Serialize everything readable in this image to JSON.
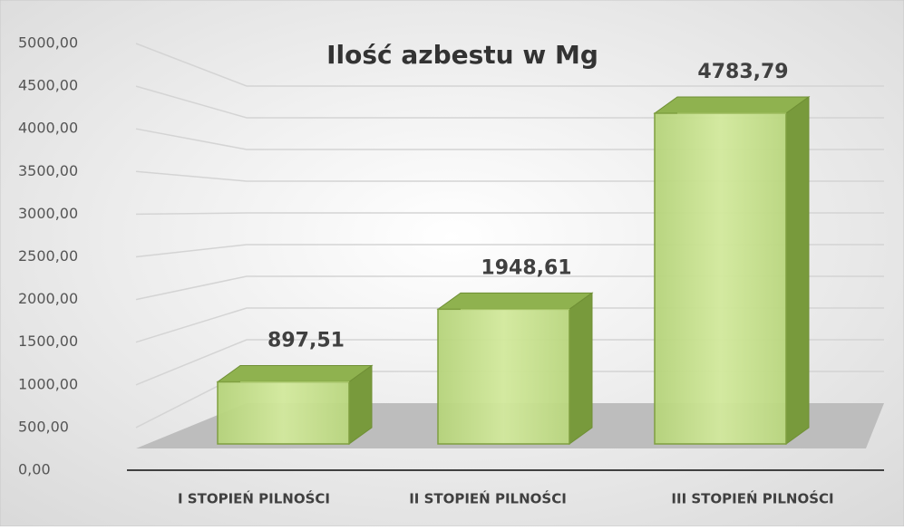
{
  "chart_data": {
    "type": "bar3d",
    "title": "Ilość azbestu w Mg",
    "categories": [
      "I STOPIEŃ PILNOŚCI",
      "II STOPIEŃ PILNOŚCI",
      "III STOPIEŃ PILNOŚCI"
    ],
    "values": [
      897.51,
      1948.61,
      4783.79
    ],
    "value_labels": [
      "897,51",
      "1948,61",
      "4783,79"
    ],
    "color": "#c6e08c",
    "ylim": [
      0,
      5000
    ],
    "yticks": [
      {
        "value": 0,
        "label": "0,00"
      },
      {
        "value": 500,
        "label": "500,00"
      },
      {
        "value": 1000,
        "label": "1000,00"
      },
      {
        "value": 1500,
        "label": "1500,00"
      },
      {
        "value": 2000,
        "label": "2000,00"
      },
      {
        "value": 2500,
        "label": "2500,00"
      },
      {
        "value": 3000,
        "label": "3000,00"
      },
      {
        "value": 3500,
        "label": "3500,00"
      },
      {
        "value": 4000,
        "label": "4000,00"
      },
      {
        "value": 4500,
        "label": "4500,00"
      },
      {
        "value": 5000,
        "label": "5000,00"
      }
    ],
    "grid": true
  }
}
